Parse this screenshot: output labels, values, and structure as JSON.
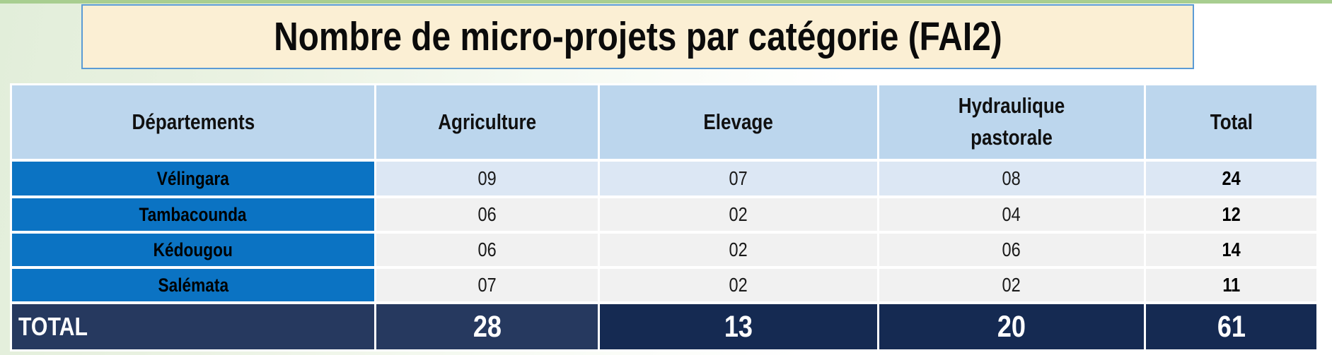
{
  "chart_data": {
    "type": "table",
    "title": "Nombre de micro-projets par catégorie (FAI2)",
    "columns": [
      "Départements",
      "Agriculture",
      "Elevage",
      "Hydraulique pastorale",
      "Total"
    ],
    "rows": [
      {
        "label": "Vélingara",
        "values": [
          "09",
          "07",
          "08",
          "24"
        ]
      },
      {
        "label": "Tambacounda",
        "values": [
          "06",
          "02",
          "04",
          "12"
        ]
      },
      {
        "label": "Kédougou",
        "values": [
          "06",
          "02",
          "06",
          "14"
        ]
      },
      {
        "label": "Salémata",
        "values": [
          "07",
          "02",
          "02",
          "11"
        ]
      }
    ],
    "total_row": {
      "label": "TOTAL",
      "values": [
        "28",
        "13",
        "20",
        "61"
      ]
    }
  },
  "colors": {
    "page_green": "#e2eeda",
    "top_strip_green": "#a8ce90",
    "title_bg": "#fbefd4",
    "title_border": "#5b9bd5",
    "header_bg": "#bcd6ed",
    "department_bg": "#0b73c3",
    "row_band_blue": "#dce7f4",
    "row_band_gray": "#f1f1f1",
    "total_navy": "#26395f",
    "total_dark_navy": "#152a52"
  }
}
